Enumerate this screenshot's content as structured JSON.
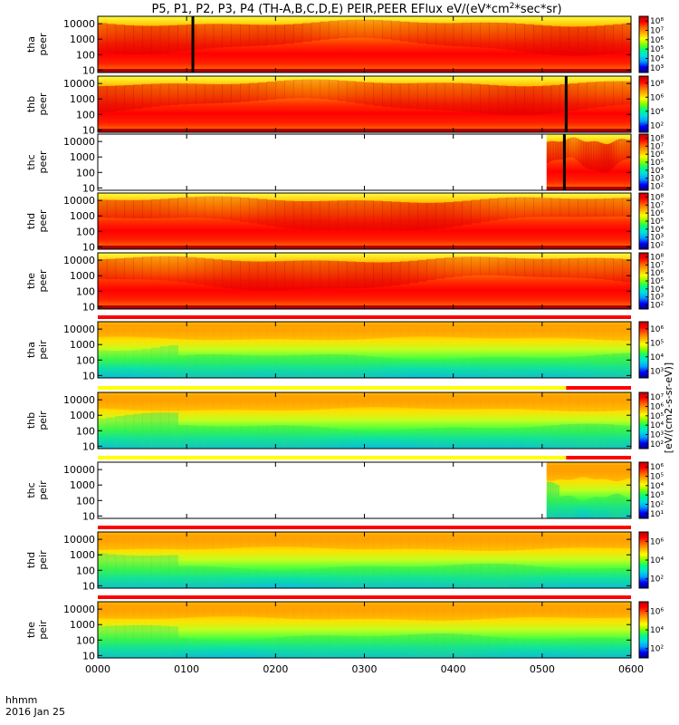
{
  "title": "P5, P1, P2, P3, P4 (TH-A,B,C,D,E) PEIR,PEER EFlux eV/(eV*cm",
  "title_sup": "2",
  "title_tail": "*sec*sr)",
  "colorbar_unit_label": "[eV/(cm2-s-sr-eV)]",
  "colors": {
    "spectrogram_ramp": [
      "#000080",
      "#0000ff",
      "#00a0ff",
      "#00e0e0",
      "#00ff80",
      "#80ff00",
      "#ffff00",
      "#ffb000",
      "#ff6000",
      "#ff0000",
      "#c00000"
    ],
    "bar_red": "#ff0000",
    "bar_yellow": "#ffff00"
  },
  "chart_data": {
    "type": "heatmap",
    "x_axis": {
      "date_label": "2016 Jan 25",
      "format_label": "hhmm",
      "ticks": [
        "0000",
        "0100",
        "0200",
        "0300",
        "0400",
        "0500",
        "0600"
      ],
      "range_hours": [
        0,
        6
      ]
    },
    "y_axis": {
      "scale": "log",
      "unit": "eV",
      "range": [
        7,
        30000
      ],
      "ticks": [
        "10",
        "100",
        "1000",
        "10000"
      ]
    },
    "panels": [
      {
        "label_top": "tha",
        "label_bottom": "peer",
        "species": "electron",
        "colorbar_ticks": [
          "10³",
          "10⁴",
          "10⁵",
          "10⁶",
          "10⁷",
          "10⁸"
        ],
        "data_start_hour": 0.0,
        "base_level": 0.82,
        "dropouts_hour": [
          1.07
        ],
        "bar_above": "none"
      },
      {
        "label_top": "thb",
        "label_bottom": "peer",
        "species": "electron",
        "colorbar_ticks": [
          "10²",
          "10⁴",
          "10⁶",
          "10⁸"
        ],
        "data_start_hour": 0.0,
        "base_level": 0.55,
        "dropouts_hour": [
          5.27
        ],
        "bar_above": "none"
      },
      {
        "label_top": "thc",
        "label_bottom": "peer",
        "species": "electron",
        "colorbar_ticks": [
          "10²",
          "10³",
          "10⁴",
          "10⁵",
          "10⁶",
          "10⁷",
          "10⁸"
        ],
        "data_start_hour": 5.05,
        "base_level": 0.55,
        "dropouts_hour": [
          5.25
        ],
        "bar_above": "none"
      },
      {
        "label_top": "thd",
        "label_bottom": "peer",
        "species": "electron",
        "colorbar_ticks": [
          "10²",
          "10³",
          "10⁴",
          "10⁵",
          "10⁶",
          "10⁷",
          "10⁸"
        ],
        "data_start_hour": 0.0,
        "base_level": 0.88,
        "dropouts_hour": [],
        "bar_above": "none"
      },
      {
        "label_top": "the",
        "label_bottom": "peer",
        "species": "electron",
        "colorbar_ticks": [
          "10²",
          "10³",
          "10⁴",
          "10⁵",
          "10⁶",
          "10⁷",
          "10⁸"
        ],
        "data_start_hour": 0.0,
        "base_level": 0.88,
        "dropouts_hour": [],
        "bar_above": "none"
      },
      {
        "label_top": "tha",
        "label_bottom": "peir",
        "species": "ion",
        "colorbar_ticks": [
          "10³",
          "10⁴",
          "10⁵",
          "10⁶"
        ],
        "data_start_hour": 0.0,
        "base_level": 0.62,
        "dropouts_hour": [],
        "bar_above": "red"
      },
      {
        "label_top": "thb",
        "label_bottom": "peir",
        "species": "ion",
        "colorbar_ticks": [
          "10²",
          "10³",
          "10⁴",
          "10⁵",
          "10⁶",
          "10⁷"
        ],
        "data_start_hour": 0.0,
        "base_level": 0.42,
        "dropouts_hour": [],
        "bar_above": "yellow-red"
      },
      {
        "label_top": "thc",
        "label_bottom": "peir",
        "species": "ion",
        "colorbar_ticks": [
          "10¹",
          "10²",
          "10³",
          "10⁴",
          "10⁵",
          "10⁶"
        ],
        "data_start_hour": 5.05,
        "base_level": 0.55,
        "dropouts_hour": [],
        "bar_above": "yellow-red"
      },
      {
        "label_top": "thd",
        "label_bottom": "peir",
        "species": "ion",
        "colorbar_ticks": [
          "10²",
          "10⁴",
          "10⁶"
        ],
        "data_start_hour": 0.0,
        "base_level": 0.58,
        "dropouts_hour": [],
        "bar_above": "red"
      },
      {
        "label_top": "the",
        "label_bottom": "peir",
        "species": "ion",
        "colorbar_ticks": [
          "10²",
          "10⁴",
          "10⁶"
        ],
        "data_start_hour": 0.0,
        "base_level": 0.58,
        "dropouts_hour": [],
        "bar_above": "red"
      }
    ]
  }
}
